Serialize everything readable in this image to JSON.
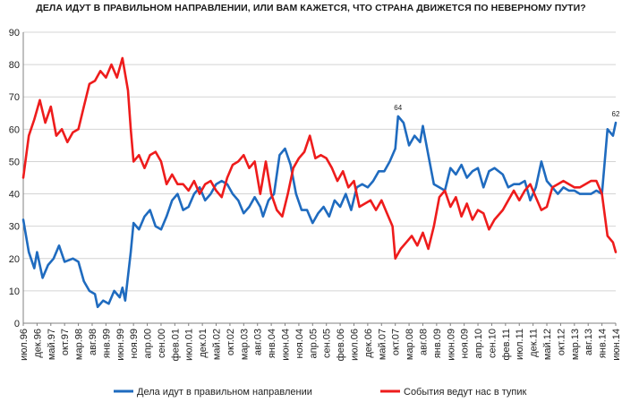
{
  "chart_data": {
    "type": "line",
    "title": "ДЕЛА ИДУТ В ПРАВИЛЬНОМ НАПРАВЛЕНИИ, ИЛИ ВАМ КАЖЕТСЯ, ЧТО СТРАНА ДВИЖЕТСЯ ПО НЕВЕРНОМУ ПУТИ?",
    "ylim": [
      0,
      90
    ],
    "yticks": [
      0,
      10,
      20,
      30,
      40,
      50,
      60,
      70,
      80,
      90
    ],
    "grid": true,
    "legend_position": "bottom",
    "x_start": "1996-07",
    "x_end": "2014-06",
    "tick_labels": [
      "июл.96",
      "дек.96",
      "май.97",
      "окт.97",
      "мар.98",
      "авг.98",
      "янв.99",
      "июн.99",
      "ноя.99",
      "апр.00",
      "сен.00",
      "фев.01",
      "июл.01",
      "дек.01",
      "май.02",
      "окт.02",
      "мар.03",
      "авг.03",
      "янв.04",
      "июн.04",
      "ноя.04",
      "апр.05",
      "сен.05",
      "фев.06",
      "июл.06",
      "дек.06",
      "май.07",
      "окт.07",
      "мар.08",
      "авг.08",
      "янв.09",
      "июн.09",
      "ноя.09",
      "апр.10",
      "сен.10",
      "фев.11",
      "июл.11",
      "дек.11",
      "май.12",
      "окт.12",
      "мар.13",
      "авг.13",
      "янв.14",
      "июн.14"
    ],
    "series": [
      {
        "name": "Дела идут в правильном направлении",
        "color": "#1f6bbf",
        "points": [
          [
            "1996-07",
            32
          ],
          [
            "1996-09",
            22
          ],
          [
            "1996-11",
            17
          ],
          [
            "1996-12",
            22
          ],
          [
            "1997-02",
            14
          ],
          [
            "1997-04",
            18
          ],
          [
            "1997-06",
            20
          ],
          [
            "1997-08",
            24
          ],
          [
            "1997-10",
            19
          ],
          [
            "1998-01",
            20
          ],
          [
            "1998-03",
            19
          ],
          [
            "1998-05",
            13
          ],
          [
            "1998-07",
            10
          ],
          [
            "1998-09",
            9
          ],
          [
            "1998-10",
            5
          ],
          [
            "1998-12",
            7
          ],
          [
            "1999-02",
            6
          ],
          [
            "1999-04",
            10
          ],
          [
            "1999-06",
            8
          ],
          [
            "1999-07",
            11
          ],
          [
            "1999-08",
            7
          ],
          [
            "1999-10",
            22
          ],
          [
            "1999-11",
            31
          ],
          [
            "2000-01",
            29
          ],
          [
            "2000-03",
            33
          ],
          [
            "2000-05",
            35
          ],
          [
            "2000-07",
            30
          ],
          [
            "2000-09",
            29
          ],
          [
            "2000-11",
            33
          ],
          [
            "2001-01",
            38
          ],
          [
            "2001-03",
            40
          ],
          [
            "2001-05",
            35
          ],
          [
            "2001-07",
            36
          ],
          [
            "2001-09",
            40
          ],
          [
            "2001-11",
            42
          ],
          [
            "2002-01",
            38
          ],
          [
            "2002-03",
            40
          ],
          [
            "2002-05",
            43
          ],
          [
            "2002-07",
            44
          ],
          [
            "2002-09",
            43
          ],
          [
            "2002-11",
            40
          ],
          [
            "2003-01",
            38
          ],
          [
            "2003-03",
            34
          ],
          [
            "2003-05",
            36
          ],
          [
            "2003-07",
            39
          ],
          [
            "2003-09",
            36
          ],
          [
            "2003-10",
            33
          ],
          [
            "2003-12",
            38
          ],
          [
            "2004-02",
            40
          ],
          [
            "2004-04",
            52
          ],
          [
            "2004-06",
            54
          ],
          [
            "2004-08",
            49
          ],
          [
            "2004-10",
            40
          ],
          [
            "2004-12",
            35
          ],
          [
            "2005-02",
            35
          ],
          [
            "2005-04",
            31
          ],
          [
            "2005-06",
            34
          ],
          [
            "2005-08",
            36
          ],
          [
            "2005-10",
            33
          ],
          [
            "2005-12",
            38
          ],
          [
            "2006-02",
            36
          ],
          [
            "2006-04",
            40
          ],
          [
            "2006-06",
            35
          ],
          [
            "2006-08",
            42
          ],
          [
            "2006-10",
            43
          ],
          [
            "2006-12",
            42
          ],
          [
            "2007-02",
            44
          ],
          [
            "2007-04",
            47
          ],
          [
            "2007-06",
            47
          ],
          [
            "2007-08",
            50
          ],
          [
            "2007-10",
            54
          ],
          [
            "2007-11",
            64
          ],
          [
            "2008-01",
            62
          ],
          [
            "2008-03",
            55
          ],
          [
            "2008-05",
            58
          ],
          [
            "2008-07",
            56
          ],
          [
            "2008-08",
            61
          ],
          [
            "2008-10",
            52
          ],
          [
            "2008-12",
            43
          ],
          [
            "2009-02",
            42
          ],
          [
            "2009-04",
            41
          ],
          [
            "2009-06",
            48
          ],
          [
            "2009-08",
            46
          ],
          [
            "2009-10",
            49
          ],
          [
            "2009-12",
            45
          ],
          [
            "2010-02",
            47
          ],
          [
            "2010-04",
            48
          ],
          [
            "2010-06",
            42
          ],
          [
            "2010-08",
            47
          ],
          [
            "2010-10",
            48
          ],
          [
            "2011-01",
            46
          ],
          [
            "2011-03",
            42
          ],
          [
            "2011-05",
            43
          ],
          [
            "2011-07",
            43
          ],
          [
            "2011-09",
            44
          ],
          [
            "2011-11",
            38
          ],
          [
            "2012-01",
            42
          ],
          [
            "2012-03",
            50
          ],
          [
            "2012-05",
            44
          ],
          [
            "2012-07",
            42
          ],
          [
            "2012-09",
            40
          ],
          [
            "2012-11",
            42
          ],
          [
            "2013-01",
            41
          ],
          [
            "2013-03",
            41
          ],
          [
            "2013-05",
            40
          ],
          [
            "2013-07",
            40
          ],
          [
            "2013-09",
            40
          ],
          [
            "2013-11",
            41
          ],
          [
            "2014-01",
            40
          ],
          [
            "2014-03",
            60
          ],
          [
            "2014-05",
            58
          ],
          [
            "2014-06",
            62
          ]
        ]
      },
      {
        "name": "События ведут нас в тупик",
        "color": "#ee1c1c",
        "points": [
          [
            "1996-07",
            45
          ],
          [
            "1996-09",
            58
          ],
          [
            "1996-11",
            63
          ],
          [
            "1997-01",
            69
          ],
          [
            "1997-03",
            62
          ],
          [
            "1997-05",
            67
          ],
          [
            "1997-07",
            58
          ],
          [
            "1997-09",
            60
          ],
          [
            "1997-11",
            56
          ],
          [
            "1998-01",
            59
          ],
          [
            "1998-03",
            60
          ],
          [
            "1998-05",
            67
          ],
          [
            "1998-07",
            74
          ],
          [
            "1998-09",
            75
          ],
          [
            "1998-11",
            78
          ],
          [
            "1999-01",
            76
          ],
          [
            "1999-03",
            80
          ],
          [
            "1999-05",
            76
          ],
          [
            "1999-07",
            82
          ],
          [
            "1999-09",
            72
          ],
          [
            "1999-10",
            60
          ],
          [
            "1999-11",
            50
          ],
          [
            "2000-01",
            52
          ],
          [
            "2000-03",
            48
          ],
          [
            "2000-05",
            52
          ],
          [
            "2000-07",
            53
          ],
          [
            "2000-09",
            50
          ],
          [
            "2000-11",
            43
          ],
          [
            "2001-01",
            46
          ],
          [
            "2001-03",
            43
          ],
          [
            "2001-05",
            43
          ],
          [
            "2001-07",
            41
          ],
          [
            "2001-09",
            44
          ],
          [
            "2001-11",
            40
          ],
          [
            "2002-01",
            43
          ],
          [
            "2002-03",
            44
          ],
          [
            "2002-05",
            41
          ],
          [
            "2002-07",
            39
          ],
          [
            "2002-09",
            45
          ],
          [
            "2002-11",
            49
          ],
          [
            "2003-01",
            50
          ],
          [
            "2003-03",
            52
          ],
          [
            "2003-05",
            48
          ],
          [
            "2003-07",
            50
          ],
          [
            "2003-09",
            40
          ],
          [
            "2003-11",
            50
          ],
          [
            "2004-01",
            40
          ],
          [
            "2004-03",
            35
          ],
          [
            "2004-05",
            33
          ],
          [
            "2004-07",
            40
          ],
          [
            "2004-09",
            48
          ],
          [
            "2004-11",
            51
          ],
          [
            "2005-01",
            53
          ],
          [
            "2005-03",
            58
          ],
          [
            "2005-05",
            51
          ],
          [
            "2005-07",
            52
          ],
          [
            "2005-09",
            51
          ],
          [
            "2005-11",
            48
          ],
          [
            "2006-01",
            44
          ],
          [
            "2006-03",
            47
          ],
          [
            "2006-05",
            42
          ],
          [
            "2006-07",
            44
          ],
          [
            "2006-09",
            36
          ],
          [
            "2006-11",
            37
          ],
          [
            "2007-01",
            38
          ],
          [
            "2007-03",
            35
          ],
          [
            "2007-05",
            38
          ],
          [
            "2007-07",
            34
          ],
          [
            "2007-09",
            30
          ],
          [
            "2007-10",
            20
          ],
          [
            "2007-12",
            23
          ],
          [
            "2008-02",
            25
          ],
          [
            "2008-04",
            27
          ],
          [
            "2008-06",
            24
          ],
          [
            "2008-08",
            28
          ],
          [
            "2008-10",
            23
          ],
          [
            "2008-12",
            30
          ],
          [
            "2009-02",
            39
          ],
          [
            "2009-04",
            41
          ],
          [
            "2009-06",
            36
          ],
          [
            "2009-08",
            39
          ],
          [
            "2009-10",
            33
          ],
          [
            "2009-12",
            37
          ],
          [
            "2010-02",
            32
          ],
          [
            "2010-04",
            35
          ],
          [
            "2010-06",
            34
          ],
          [
            "2010-08",
            29
          ],
          [
            "2010-10",
            32
          ],
          [
            "2011-01",
            35
          ],
          [
            "2011-03",
            38
          ],
          [
            "2011-05",
            41
          ],
          [
            "2011-07",
            38
          ],
          [
            "2011-09",
            41
          ],
          [
            "2011-11",
            43
          ],
          [
            "2012-01",
            39
          ],
          [
            "2012-03",
            35
          ],
          [
            "2012-05",
            36
          ],
          [
            "2012-07",
            42
          ],
          [
            "2012-09",
            43
          ],
          [
            "2012-11",
            44
          ],
          [
            "2013-01",
            43
          ],
          [
            "2013-03",
            42
          ],
          [
            "2013-05",
            42
          ],
          [
            "2013-07",
            43
          ],
          [
            "2013-09",
            44
          ],
          [
            "2013-11",
            44
          ],
          [
            "2014-01",
            40
          ],
          [
            "2014-03",
            27
          ],
          [
            "2014-05",
            25
          ],
          [
            "2014-06",
            22
          ]
        ]
      }
    ],
    "annotations": [
      {
        "date": "2007-11",
        "value": 64,
        "text": "64"
      },
      {
        "date": "2014-06",
        "value": 62,
        "text": "62"
      }
    ]
  }
}
